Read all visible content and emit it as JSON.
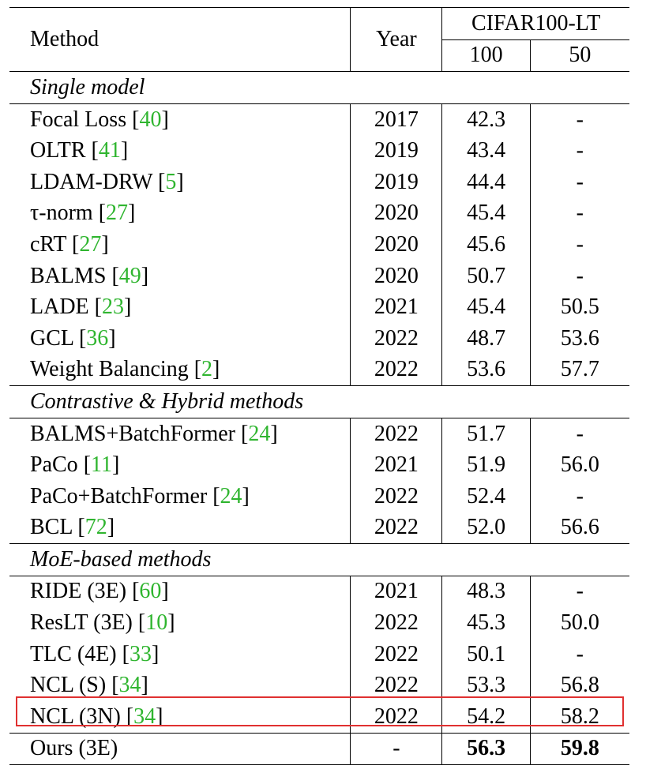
{
  "header": {
    "method_label": "Method",
    "year_label": "Year",
    "dataset_label": "CIFAR100-LT",
    "ratio_100": "100",
    "ratio_50": "50"
  },
  "groups": [
    {
      "title": "Single model",
      "rows": [
        {
          "method": "Focal Loss",
          "cite": "40",
          "year": "2017",
          "v100": "42.3",
          "v50": "-"
        },
        {
          "method": "OLTR",
          "cite": "41",
          "year": "2019",
          "v100": "43.4",
          "v50": "-"
        },
        {
          "method": "LDAM-DRW",
          "cite": "5",
          "year": "2019",
          "v100": "44.4",
          "v50": "-"
        },
        {
          "method": "τ-norm",
          "cite": "27",
          "year": "2020",
          "v100": "45.4",
          "v50": "-"
        },
        {
          "method": "cRT",
          "cite": "27",
          "year": "2020",
          "v100": "45.6",
          "v50": "-"
        },
        {
          "method": "BALMS",
          "cite": "49",
          "year": "2020",
          "v100": "50.7",
          "v50": "-"
        },
        {
          "method": "LADE",
          "cite": "23",
          "year": "2021",
          "v100": "45.4",
          "v50": "50.5"
        },
        {
          "method": "GCL",
          "cite": "36",
          "year": "2022",
          "v100": "48.7",
          "v50": "53.6"
        },
        {
          "method": "Weight Balancing",
          "cite": "2",
          "year": "2022",
          "v100": "53.6",
          "v50": "57.7"
        }
      ]
    },
    {
      "title": "Contrastive & Hybrid methods",
      "rows": [
        {
          "method": "BALMS+BatchFormer",
          "cite": "24",
          "year": "2022",
          "v100": "51.7",
          "v50": "-"
        },
        {
          "method": "PaCo",
          "cite": "11",
          "year": "2021",
          "v100": "51.9",
          "v50": "56.0"
        },
        {
          "method": "PaCo+BatchFormer",
          "cite": "24",
          "year": "2022",
          "v100": "52.4",
          "v50": "-"
        },
        {
          "method": "BCL",
          "cite": "72",
          "year": "2022",
          "v100": "52.0",
          "v50": "56.6"
        }
      ]
    },
    {
      "title": "MoE-based methods",
      "rows": [
        {
          "method": "RIDE (3E)",
          "cite": "60",
          "year": "2021",
          "v100": "48.3",
          "v50": "-"
        },
        {
          "method": "ResLT (3E)",
          "cite": "10",
          "year": "2022",
          "v100": "45.3",
          "v50": "50.0"
        },
        {
          "method": "TLC (4E)",
          "cite": "33",
          "year": "2022",
          "v100": "50.1",
          "v50": "-"
        },
        {
          "method": "NCL (S)",
          "cite": "34",
          "year": "2022",
          "v100": "53.3",
          "v50": "56.8"
        },
        {
          "method": "NCL (3N)",
          "cite": "34",
          "year": "2022",
          "v100": "54.2",
          "v50": "58.2"
        }
      ]
    }
  ],
  "ours": {
    "method": "Ours (3E)",
    "year": "-",
    "v100": "56.3",
    "v50": "59.8"
  },
  "colors": {
    "citation": "#2fb52f",
    "highlight_box": "#e03030"
  }
}
